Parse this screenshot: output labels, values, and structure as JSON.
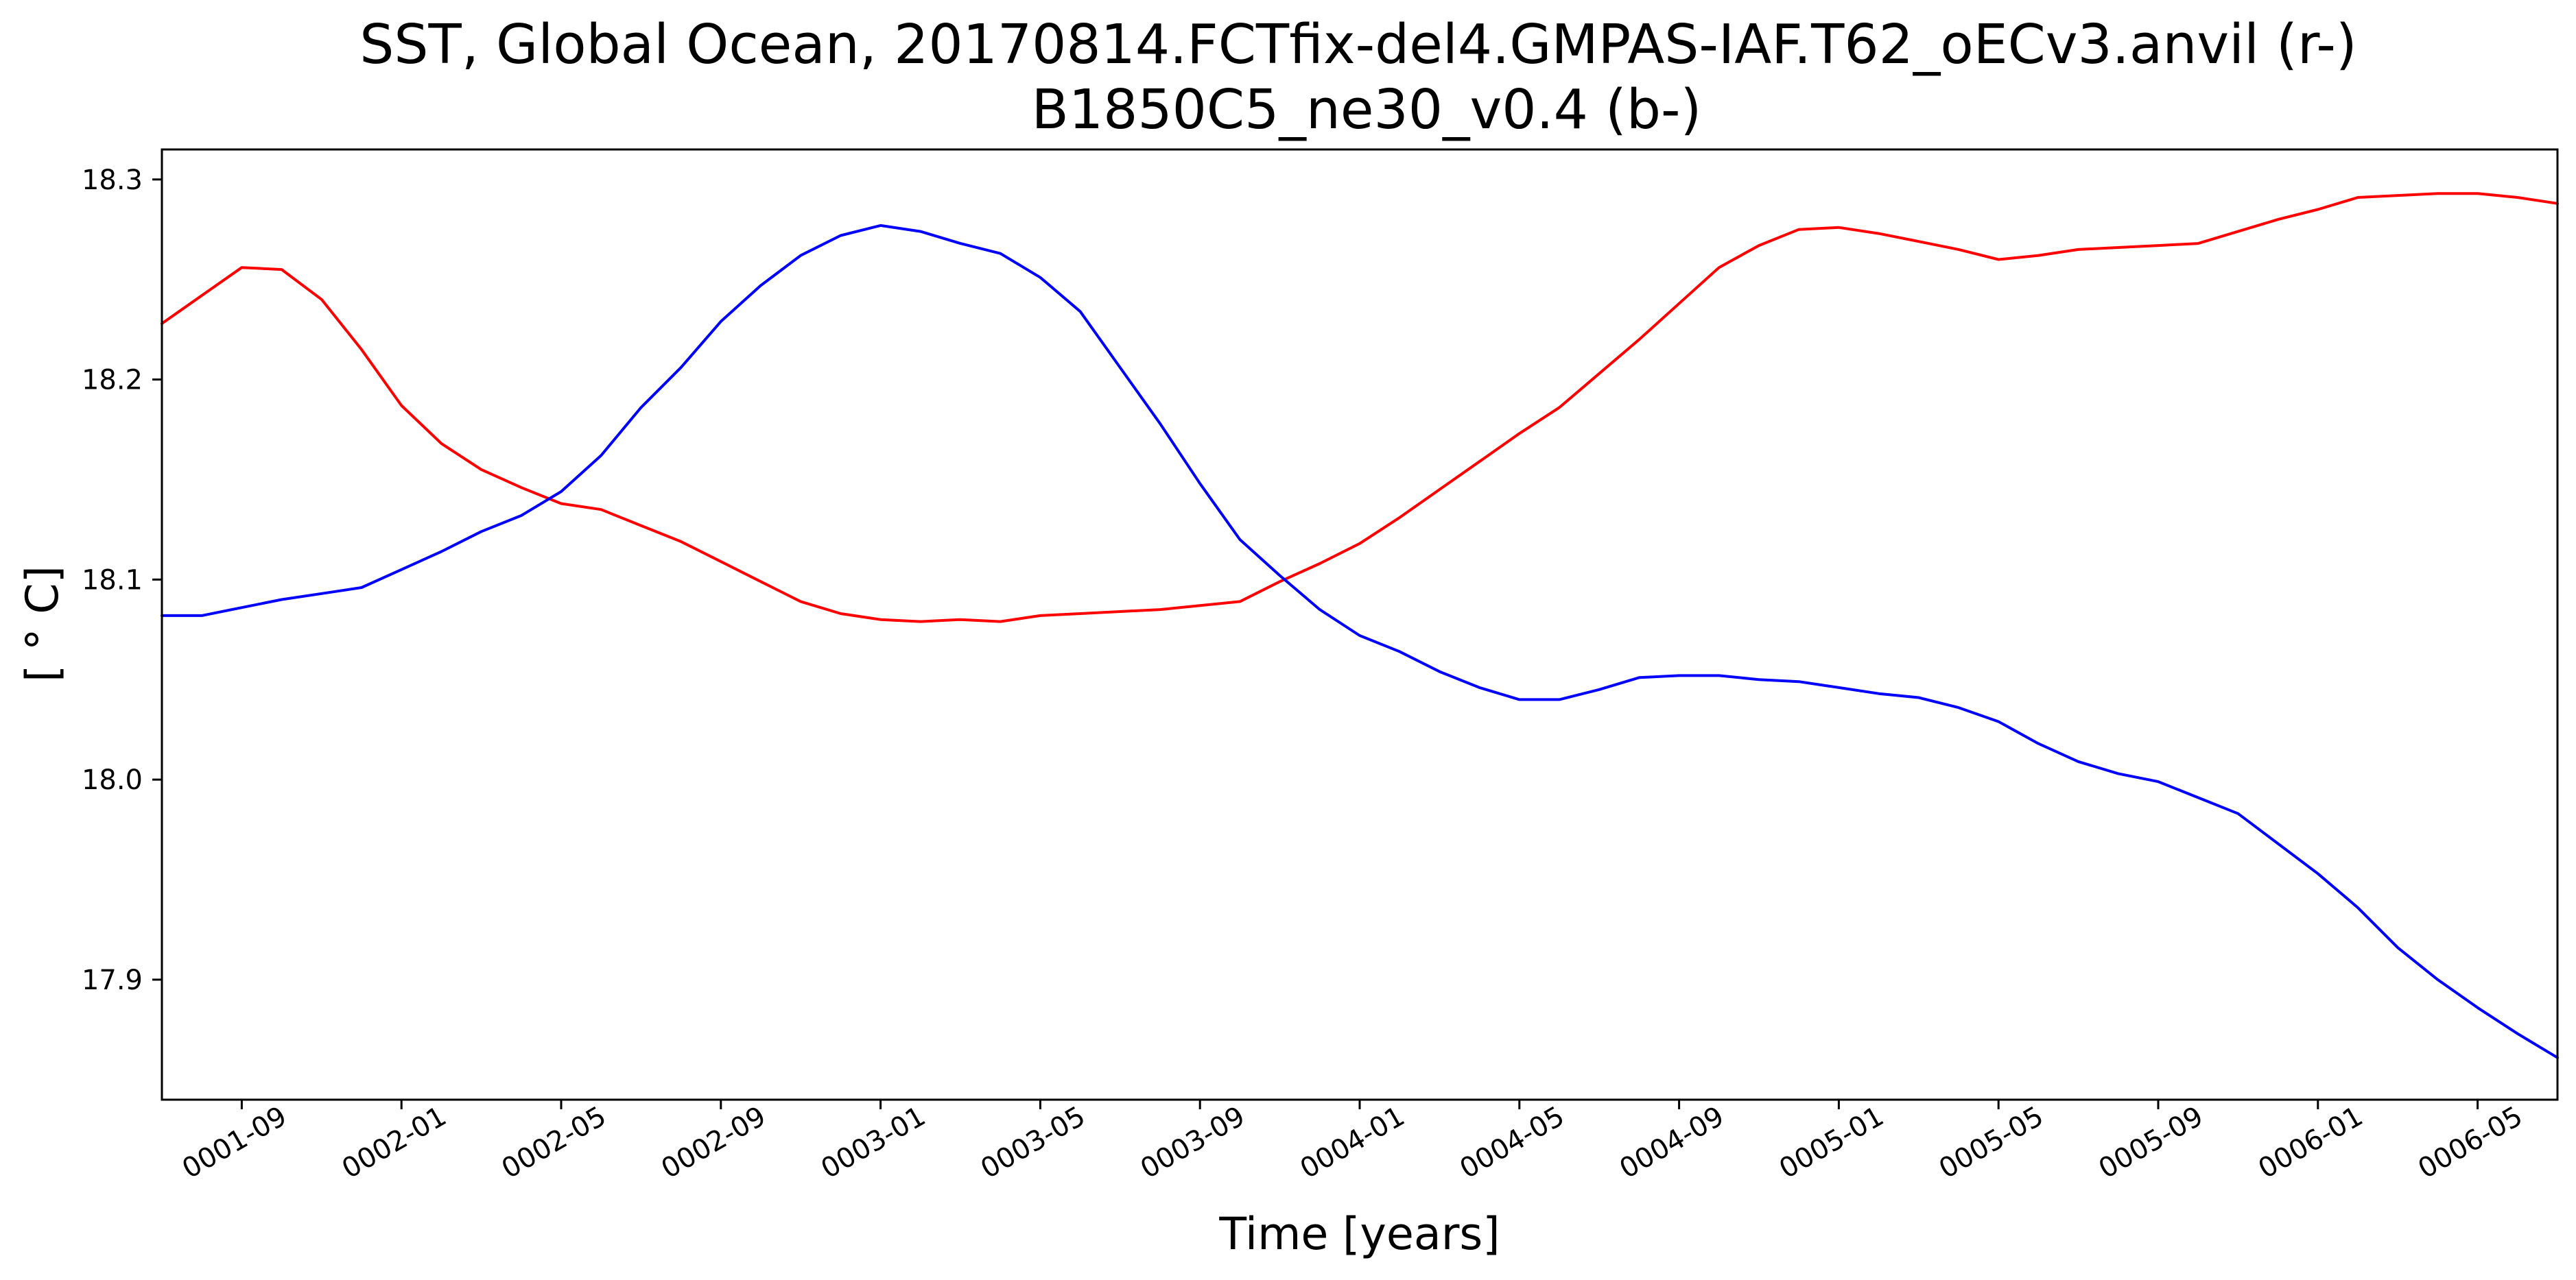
{
  "chart_data": {
    "type": "line",
    "title": "SST, Global Ocean, 20170814.FCTfix-del4.GMPAS-IAF.T62_oECv3.anvil (r-)",
    "subtitle": "B1850C5_ne30_v0.4 (b-)",
    "xlabel": "Time [years]",
    "ylabel": "[ ° C]",
    "x_unit": "month",
    "xlim": [
      "0001-07",
      "0006-07"
    ],
    "ylim": [
      17.84,
      18.315
    ],
    "grid": false,
    "legend": "none",
    "x_ticks": [
      "0001-09",
      "0002-01",
      "0002-05",
      "0002-09",
      "0003-01",
      "0003-05",
      "0003-09",
      "0004-01",
      "0004-05",
      "0004-09",
      "0005-01",
      "0005-05",
      "0005-09",
      "0006-01",
      "0006-05"
    ],
    "y_ticks": [
      17.9,
      18.0,
      18.1,
      18.2,
      18.3
    ],
    "y_tick_labels": [
      "17.9",
      "18.0",
      "18.1",
      "18.2",
      "18.3"
    ],
    "x": [
      "0001-07",
      "0001-08",
      "0001-09",
      "0001-10",
      "0001-11",
      "0001-12",
      "0002-01",
      "0002-02",
      "0002-03",
      "0002-04",
      "0002-05",
      "0002-06",
      "0002-07",
      "0002-08",
      "0002-09",
      "0002-10",
      "0002-11",
      "0002-12",
      "0003-01",
      "0003-02",
      "0003-03",
      "0003-04",
      "0003-05",
      "0003-06",
      "0003-07",
      "0003-08",
      "0003-09",
      "0003-10",
      "0003-11",
      "0003-12",
      "0004-01",
      "0004-02",
      "0004-03",
      "0004-04",
      "0004-05",
      "0004-06",
      "0004-07",
      "0004-08",
      "0004-09",
      "0004-10",
      "0004-11",
      "0004-12",
      "0005-01",
      "0005-02",
      "0005-03",
      "0005-04",
      "0005-05",
      "0005-06",
      "0005-07",
      "0005-08",
      "0005-09",
      "0005-10",
      "0005-11",
      "0005-12",
      "0006-01",
      "0006-02",
      "0006-03",
      "0006-04",
      "0006-05",
      "0006-06",
      "0006-07"
    ],
    "series": [
      {
        "color": "#ff0000",
        "values": [
          18.228,
          18.242,
          18.256,
          18.255,
          18.24,
          18.215,
          18.187,
          18.168,
          18.155,
          18.146,
          18.138,
          18.135,
          18.127,
          18.119,
          18.109,
          18.099,
          18.089,
          18.083,
          18.08,
          18.079,
          18.08,
          18.079,
          18.082,
          18.083,
          18.084,
          18.085,
          18.087,
          18.089,
          18.099,
          18.108,
          18.118,
          18.131,
          18.145,
          18.159,
          18.173,
          18.186,
          18.203,
          18.22,
          18.238,
          18.256,
          18.267,
          18.275,
          18.276,
          18.273,
          18.269,
          18.265,
          18.26,
          18.262,
          18.265,
          18.266,
          18.267,
          18.268,
          18.274,
          18.28,
          18.285,
          18.291,
          18.292,
          18.293,
          18.293,
          18.291,
          18.288
        ]
      },
      {
        "color": "#0000ff",
        "values": [
          18.082,
          18.082,
          18.086,
          18.09,
          18.093,
          18.096,
          18.105,
          18.114,
          18.124,
          18.132,
          18.144,
          18.162,
          18.186,
          18.206,
          18.229,
          18.247,
          18.262,
          18.272,
          18.277,
          18.274,
          18.268,
          18.263,
          18.251,
          18.234,
          18.206,
          18.178,
          18.148,
          18.12,
          18.102,
          18.085,
          18.072,
          18.064,
          18.054,
          18.046,
          18.04,
          18.04,
          18.045,
          18.051,
          18.052,
          18.052,
          18.05,
          18.049,
          18.046,
          18.043,
          18.041,
          18.036,
          18.029,
          18.018,
          18.009,
          18.003,
          17.999,
          17.991,
          17.983,
          17.968,
          17.953,
          17.936,
          17.916,
          17.9,
          17.886,
          17.873,
          17.861
        ]
      }
    ]
  }
}
